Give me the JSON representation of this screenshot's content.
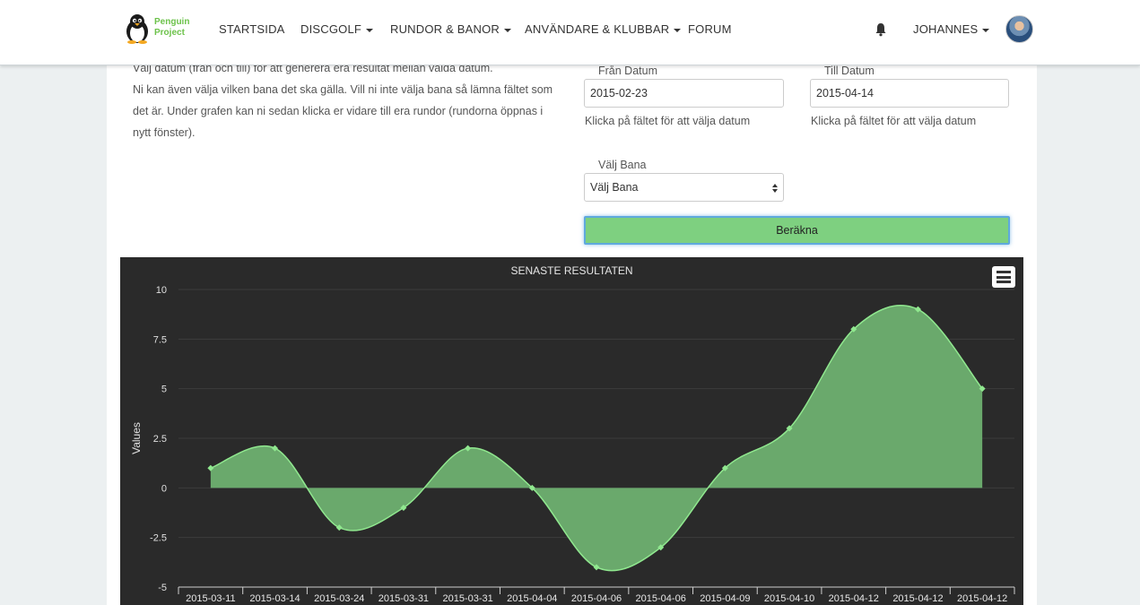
{
  "navbar": {
    "logo_line1": "Penguin",
    "logo_line2": "Project",
    "items": [
      {
        "label": "STARTSIDA",
        "dropdown": false
      },
      {
        "label": "DISCGOLF",
        "dropdown": true
      },
      {
        "label": "RUNDOR & BANOR",
        "dropdown": true
      },
      {
        "label": "ANVÄNDARE & KLUBBAR",
        "dropdown": true
      },
      {
        "label": "FORUM",
        "dropdown": false
      }
    ],
    "user": "JOHANNES",
    "bell_icon": "bell-icon",
    "avatar_icon": "user-avatar"
  },
  "intro": {
    "line1": "Välj datum (från och till) för att generera era resultat mellan valda datum.",
    "line2": "Ni kan även välja vilken bana det ska gälla. Vill ni inte välja bana så lämna fältet som det är. Under grafen kan ni sedan klicka er vidare till era rundor (rundorna öppnas i nytt fönster)."
  },
  "form": {
    "from_label": "Från Datum",
    "from_value": "2015-02-23",
    "from_help": "Klicka på fältet för att välja datum",
    "to_label": "Till Datum",
    "to_value": "2015-04-14",
    "to_help": "Klicka på fältet för att välja datum",
    "course_label": "Välj Bana",
    "course_value": "Välj Bana",
    "submit": "Beräkna"
  },
  "colors": {
    "accent_green": "#7ed080",
    "chart_bg": "#2a2a2a",
    "area_fill": "#6aa96c",
    "line": "#90e88f"
  },
  "chart_data": {
    "type": "area",
    "title": "SENASTE RESULTATEN",
    "ylabel": "Values",
    "xlabel": "",
    "categories": [
      "2015-03-11",
      "2015-03-14",
      "2015-03-24",
      "2015-03-31",
      "2015-03-31",
      "2015-04-04",
      "2015-04-06",
      "2015-04-06",
      "2015-04-09",
      "2015-04-10",
      "2015-04-12",
      "2015-04-12",
      "2015-04-12"
    ],
    "values": [
      1,
      2,
      -2,
      -1,
      2,
      0,
      -4,
      -3,
      1,
      3,
      8,
      9,
      5
    ],
    "ylim": [
      -5,
      10
    ],
    "yticks": [
      "10",
      "7.5",
      "5",
      "2.5",
      "0",
      "-2.5",
      "-5"
    ],
    "ytick_values": [
      10,
      7.5,
      5,
      2.5,
      0,
      -2.5,
      -5
    ],
    "grid": true,
    "legend": "none"
  }
}
